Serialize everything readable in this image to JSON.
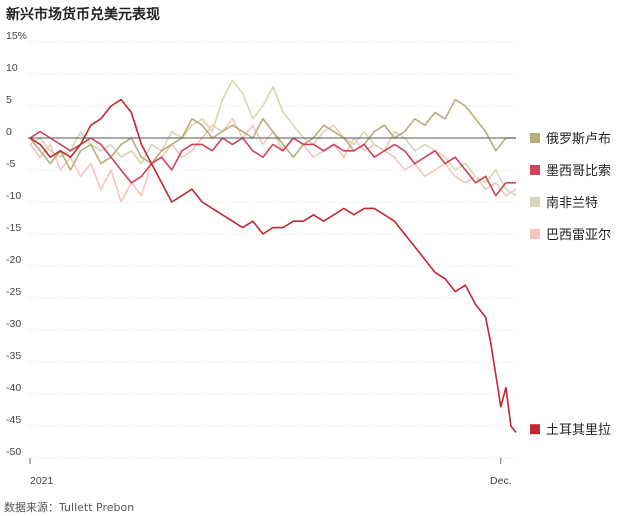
{
  "title": "新兴市场货币兑美元表现",
  "source": "数据来源：Tullett Prebon",
  "chart_data": {
    "type": "line",
    "ylim": [
      -50,
      15
    ],
    "yticks": [
      {
        "v": 15,
        "label": "15%"
      },
      {
        "v": 10,
        "label": "10"
      },
      {
        "v": 5,
        "label": "5"
      },
      {
        "v": 0,
        "label": "0"
      },
      {
        "v": -5,
        "label": "-5"
      },
      {
        "v": -10,
        "label": "-10"
      },
      {
        "v": -15,
        "label": "-15"
      },
      {
        "v": -20,
        "label": "-20"
      },
      {
        "v": -25,
        "label": "-25"
      },
      {
        "v": -30,
        "label": "-30"
      },
      {
        "v": -35,
        "label": "-35"
      },
      {
        "v": -40,
        "label": "-40"
      },
      {
        "v": -45,
        "label": "-45"
      },
      {
        "v": -50,
        "label": "-50"
      }
    ],
    "xlim": [
      0,
      48
    ],
    "xticks": [
      {
        "v": 0,
        "label": "2021"
      },
      {
        "v": 46.5,
        "label": "Dec."
      }
    ],
    "zero_line": true,
    "series": [
      {
        "name": "巴西雷亚尔",
        "color": "#f4c6bd",
        "points": [
          [
            0,
            -1
          ],
          [
            1,
            -3
          ],
          [
            2,
            -1
          ],
          [
            3,
            -5
          ],
          [
            4,
            -3
          ],
          [
            5,
            -6
          ],
          [
            6,
            -4
          ],
          [
            7,
            -8
          ],
          [
            8,
            -5
          ],
          [
            9,
            -10
          ],
          [
            10,
            -7
          ],
          [
            11,
            -9
          ],
          [
            12,
            -4
          ],
          [
            13,
            -3
          ],
          [
            14,
            -1
          ],
          [
            15,
            -3
          ],
          [
            16,
            -2
          ],
          [
            17,
            0
          ],
          [
            18,
            2
          ],
          [
            19,
            1
          ],
          [
            20,
            3
          ],
          [
            21,
            0
          ],
          [
            22,
            2
          ],
          [
            23,
            -1
          ],
          [
            24,
            1
          ],
          [
            25,
            -2
          ],
          [
            26,
            0
          ],
          [
            27,
            -1
          ],
          [
            28,
            -3
          ],
          [
            29,
            -2
          ],
          [
            30,
            -1
          ],
          [
            31,
            -3
          ],
          [
            32,
            0
          ],
          [
            33,
            -2
          ],
          [
            34,
            -1
          ],
          [
            35,
            -2
          ],
          [
            36,
            -3
          ],
          [
            37,
            -5
          ],
          [
            38,
            -4
          ],
          [
            39,
            -6
          ],
          [
            40,
            -5
          ],
          [
            41,
            -4
          ],
          [
            42,
            -6
          ],
          [
            43,
            -7
          ],
          [
            44,
            -6
          ],
          [
            45,
            -8
          ],
          [
            46,
            -7
          ],
          [
            47,
            -9
          ],
          [
            48,
            -8
          ]
        ]
      },
      {
        "name": "南非兰特",
        "color": "#d9d6b6",
        "points": [
          [
            0,
            -1
          ],
          [
            1,
            0
          ],
          [
            2,
            -2
          ],
          [
            3,
            -3
          ],
          [
            4,
            -2
          ],
          [
            5,
            1
          ],
          [
            6,
            -1
          ],
          [
            7,
            -2
          ],
          [
            8,
            -1
          ],
          [
            9,
            -3
          ],
          [
            10,
            -2
          ],
          [
            11,
            -4
          ],
          [
            12,
            -1
          ],
          [
            13,
            -2
          ],
          [
            14,
            1
          ],
          [
            15,
            0
          ],
          [
            16,
            2
          ],
          [
            17,
            3
          ],
          [
            18,
            1
          ],
          [
            19,
            6
          ],
          [
            20,
            9
          ],
          [
            21,
            7
          ],
          [
            22,
            3
          ],
          [
            23,
            5
          ],
          [
            24,
            8
          ],
          [
            25,
            4
          ],
          [
            26,
            2
          ],
          [
            27,
            0
          ],
          [
            28,
            -1
          ],
          [
            29,
            1
          ],
          [
            30,
            2
          ],
          [
            31,
            0
          ],
          [
            32,
            -1
          ],
          [
            33,
            1
          ],
          [
            34,
            -1
          ],
          [
            35,
            -2
          ],
          [
            36,
            1
          ],
          [
            37,
            0
          ],
          [
            38,
            -2
          ],
          [
            39,
            -1
          ],
          [
            40,
            -2
          ],
          [
            41,
            -3
          ],
          [
            42,
            -5
          ],
          [
            43,
            -4
          ],
          [
            44,
            -6
          ],
          [
            45,
            -7
          ],
          [
            46,
            -5
          ],
          [
            47,
            -8
          ],
          [
            48,
            -9
          ]
        ]
      },
      {
        "name": "俄罗斯卢布",
        "color": "#b7ae7e",
        "points": [
          [
            0,
            0
          ],
          [
            1,
            -2
          ],
          [
            2,
            -4
          ],
          [
            3,
            -2
          ],
          [
            4,
            -5
          ],
          [
            5,
            -2
          ],
          [
            6,
            -1
          ],
          [
            7,
            -4
          ],
          [
            8,
            -3
          ],
          [
            9,
            -1
          ],
          [
            10,
            0
          ],
          [
            11,
            -3
          ],
          [
            12,
            -4
          ],
          [
            13,
            -2
          ],
          [
            14,
            -1
          ],
          [
            15,
            0
          ],
          [
            16,
            3
          ],
          [
            17,
            2
          ],
          [
            18,
            0
          ],
          [
            19,
            1
          ],
          [
            20,
            2
          ],
          [
            21,
            1
          ],
          [
            22,
            0
          ],
          [
            23,
            3
          ],
          [
            24,
            1
          ],
          [
            25,
            -1
          ],
          [
            26,
            -3
          ],
          [
            27,
            -1
          ],
          [
            28,
            0
          ],
          [
            29,
            2
          ],
          [
            30,
            1
          ],
          [
            31,
            0
          ],
          [
            32,
            -2
          ],
          [
            33,
            -1
          ],
          [
            34,
            1
          ],
          [
            35,
            2
          ],
          [
            36,
            0
          ],
          [
            37,
            1
          ],
          [
            38,
            3
          ],
          [
            39,
            2
          ],
          [
            40,
            4
          ],
          [
            41,
            3
          ],
          [
            42,
            6
          ],
          [
            43,
            5
          ],
          [
            44,
            3
          ],
          [
            45,
            1
          ],
          [
            46,
            -2
          ],
          [
            47,
            0
          ],
          [
            48,
            0
          ]
        ]
      },
      {
        "name": "墨西哥比索",
        "color": "#d0435d",
        "points": [
          [
            0,
            0
          ],
          [
            1,
            1
          ],
          [
            2,
            0
          ],
          [
            3,
            -1
          ],
          [
            4,
            -2
          ],
          [
            5,
            -1
          ],
          [
            6,
            0
          ],
          [
            7,
            -1
          ],
          [
            8,
            -3
          ],
          [
            9,
            -5
          ],
          [
            10,
            -7
          ],
          [
            11,
            -6
          ],
          [
            12,
            -4
          ],
          [
            13,
            -3
          ],
          [
            14,
            -5
          ],
          [
            15,
            -2
          ],
          [
            16,
            -1
          ],
          [
            17,
            -1
          ],
          [
            18,
            -2
          ],
          [
            19,
            0
          ],
          [
            20,
            -1
          ],
          [
            21,
            0
          ],
          [
            22,
            -2
          ],
          [
            23,
            -3
          ],
          [
            24,
            -1
          ],
          [
            25,
            -2
          ],
          [
            26,
            0
          ],
          [
            27,
            -1
          ],
          [
            28,
            -1
          ],
          [
            29,
            -2
          ],
          [
            30,
            -1
          ],
          [
            31,
            -2
          ],
          [
            32,
            -2
          ],
          [
            33,
            -1
          ],
          [
            34,
            -3
          ],
          [
            35,
            -2
          ],
          [
            36,
            -1
          ],
          [
            37,
            -2
          ],
          [
            38,
            -4
          ],
          [
            39,
            -3
          ],
          [
            40,
            -2
          ],
          [
            41,
            -4
          ],
          [
            42,
            -3
          ],
          [
            43,
            -5
          ],
          [
            44,
            -7
          ],
          [
            45,
            -6
          ],
          [
            46,
            -9
          ],
          [
            47,
            -7
          ],
          [
            48,
            -7
          ]
        ]
      },
      {
        "name": "土耳其里拉",
        "color": "#bf2a30",
        "points": [
          [
            0,
            0
          ],
          [
            1,
            -1
          ],
          [
            2,
            -3
          ],
          [
            3,
            -2
          ],
          [
            4,
            -3
          ],
          [
            5,
            -1
          ],
          [
            6,
            2
          ],
          [
            7,
            3
          ],
          [
            8,
            5
          ],
          [
            9,
            6
          ],
          [
            10,
            4
          ],
          [
            11,
            -1
          ],
          [
            12,
            -4
          ],
          [
            13,
            -7
          ],
          [
            14,
            -10
          ],
          [
            15,
            -9
          ],
          [
            16,
            -8
          ],
          [
            17,
            -10
          ],
          [
            18,
            -11
          ],
          [
            19,
            -12
          ],
          [
            20,
            -13
          ],
          [
            21,
            -14
          ],
          [
            22,
            -13
          ],
          [
            23,
            -15
          ],
          [
            24,
            -14
          ],
          [
            25,
            -14
          ],
          [
            26,
            -13
          ],
          [
            27,
            -13
          ],
          [
            28,
            -12
          ],
          [
            29,
            -13
          ],
          [
            30,
            -12
          ],
          [
            31,
            -11
          ],
          [
            32,
            -12
          ],
          [
            33,
            -11
          ],
          [
            34,
            -11
          ],
          [
            35,
            -12
          ],
          [
            36,
            -13
          ],
          [
            37,
            -15
          ],
          [
            38,
            -17
          ],
          [
            39,
            -19
          ],
          [
            40,
            -21
          ],
          [
            41,
            -22
          ],
          [
            42,
            -24
          ],
          [
            43,
            -23
          ],
          [
            44,
            -26
          ],
          [
            45,
            -28
          ],
          [
            45.5,
            -32
          ],
          [
            46,
            -37
          ],
          [
            46.5,
            -42
          ],
          [
            47,
            -39
          ],
          [
            47.5,
            -45
          ],
          [
            48,
            -46
          ]
        ]
      }
    ],
    "legend": {
      "placement": "right",
      "items": [
        {
          "label": "俄罗斯卢布",
          "color": "#b7ae7e",
          "v": 0
        },
        {
          "label": "墨西哥比索",
          "color": "#d0435d",
          "v": -5
        },
        {
          "label": "南非兰特",
          "color": "#d9d6b6",
          "v": -10
        },
        {
          "label": "巴西雷亚尔",
          "color": "#f4c6bd",
          "v": -15
        },
        {
          "label": "土耳其里拉",
          "color": "#bf2a30",
          "v": -45.5
        }
      ]
    }
  }
}
